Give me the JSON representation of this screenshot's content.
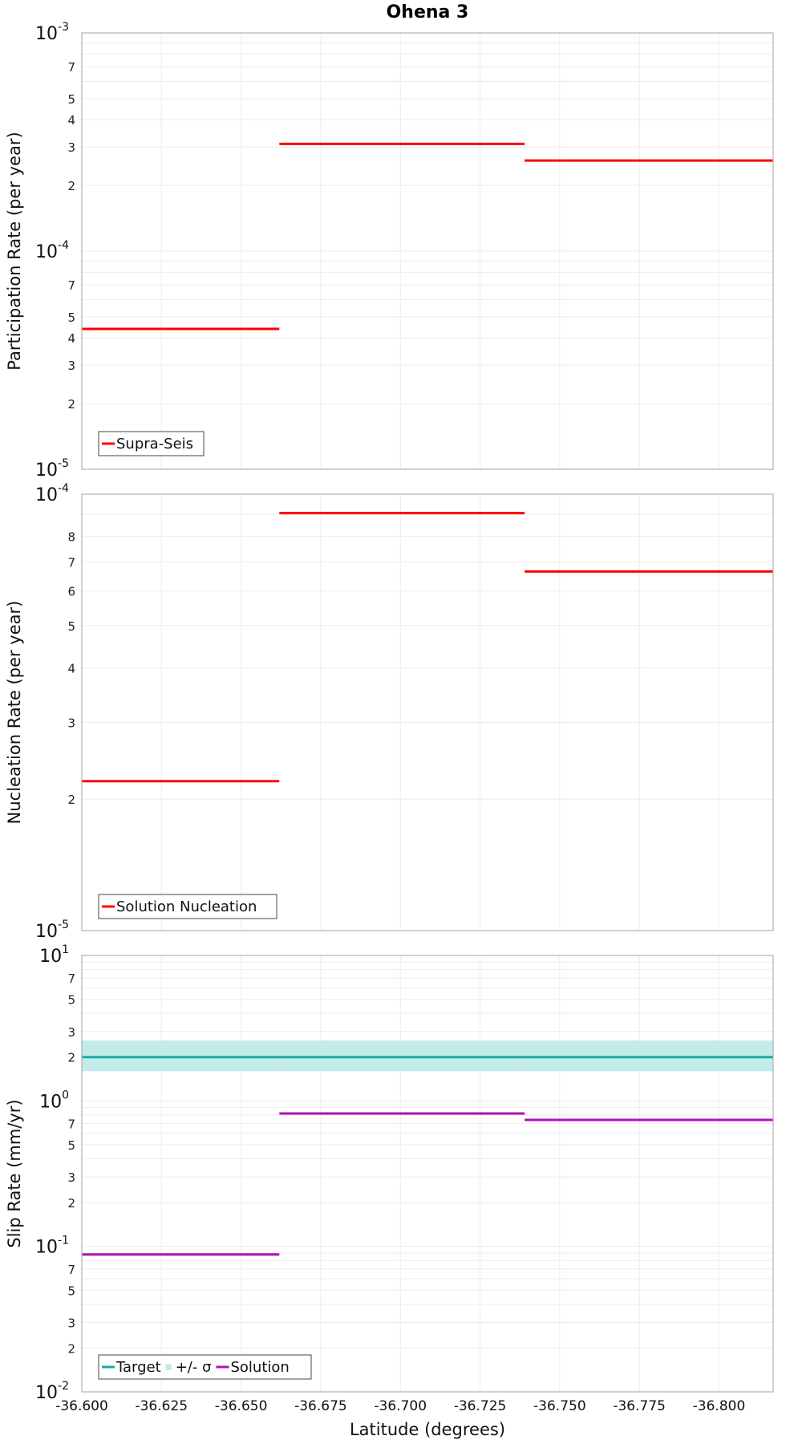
{
  "chart_data": {
    "title": "Ohena 3",
    "xlabel": "Latitude (degrees)",
    "xlim": [
      -36.6,
      -36.817
    ],
    "x_ticks": [
      "-36.600",
      "-36.625",
      "-36.650",
      "-36.675",
      "-36.700",
      "-36.725",
      "-36.750",
      "-36.775",
      "-36.800"
    ],
    "panels": [
      {
        "type": "line",
        "ylabel": "Participation Rate (per year)",
        "yscale": "log",
        "ylim": [
          1e-05,
          0.001
        ],
        "grid": true,
        "legend_placement": "bottom-left",
        "series": [
          {
            "name": "Supra-Seis",
            "color": "#ff0000",
            "segments": [
              {
                "x": [
                  -36.6,
                  -36.662
                ],
                "y": 4.4e-05
              },
              {
                "x": [
                  -36.662,
                  -36.739
                ],
                "y": 0.00031
              },
              {
                "x": [
                  -36.739,
                  -36.817
                ],
                "y": 0.00026
              }
            ]
          }
        ]
      },
      {
        "type": "line",
        "ylabel": "Nucleation Rate (per year)",
        "yscale": "log",
        "ylim": [
          1e-05,
          0.0001
        ],
        "grid": true,
        "legend_placement": "bottom-left",
        "series": [
          {
            "name": "Solution Nucleation",
            "color": "#ff0000",
            "segments": [
              {
                "x": [
                  -36.6,
                  -36.662
                ],
                "y": 2.2e-05
              },
              {
                "x": [
                  -36.662,
                  -36.739
                ],
                "y": 9.05e-05
              },
              {
                "x": [
                  -36.739,
                  -36.817
                ],
                "y": 6.65e-05
              }
            ]
          }
        ]
      },
      {
        "type": "line",
        "ylabel": "Slip Rate (mm/yr)",
        "yscale": "log",
        "ylim": [
          0.01,
          10
        ],
        "grid": true,
        "legend_placement": "bottom-left",
        "band": {
          "name": "+/- σ",
          "color": "#c2ebea",
          "lower": 1.6,
          "upper": 2.6
        },
        "series": [
          {
            "name": "Target",
            "color": "#1aa9a5",
            "segments": [
              {
                "x": [
                  -36.6,
                  -36.662
                ],
                "y": 2.0
              },
              {
                "x": [
                  -36.662,
                  -36.739
                ],
                "y": 2.0
              },
              {
                "x": [
                  -36.739,
                  -36.817
                ],
                "y": 2.0
              }
            ]
          },
          {
            "name": "Solution",
            "color": "#b010b8",
            "segments": [
              {
                "x": [
                  -36.6,
                  -36.662
                ],
                "y": 0.088
              },
              {
                "x": [
                  -36.662,
                  -36.739
                ],
                "y": 0.82
              },
              {
                "x": [
                  -36.739,
                  -36.817
                ],
                "y": 0.74
              }
            ]
          }
        ]
      }
    ]
  }
}
